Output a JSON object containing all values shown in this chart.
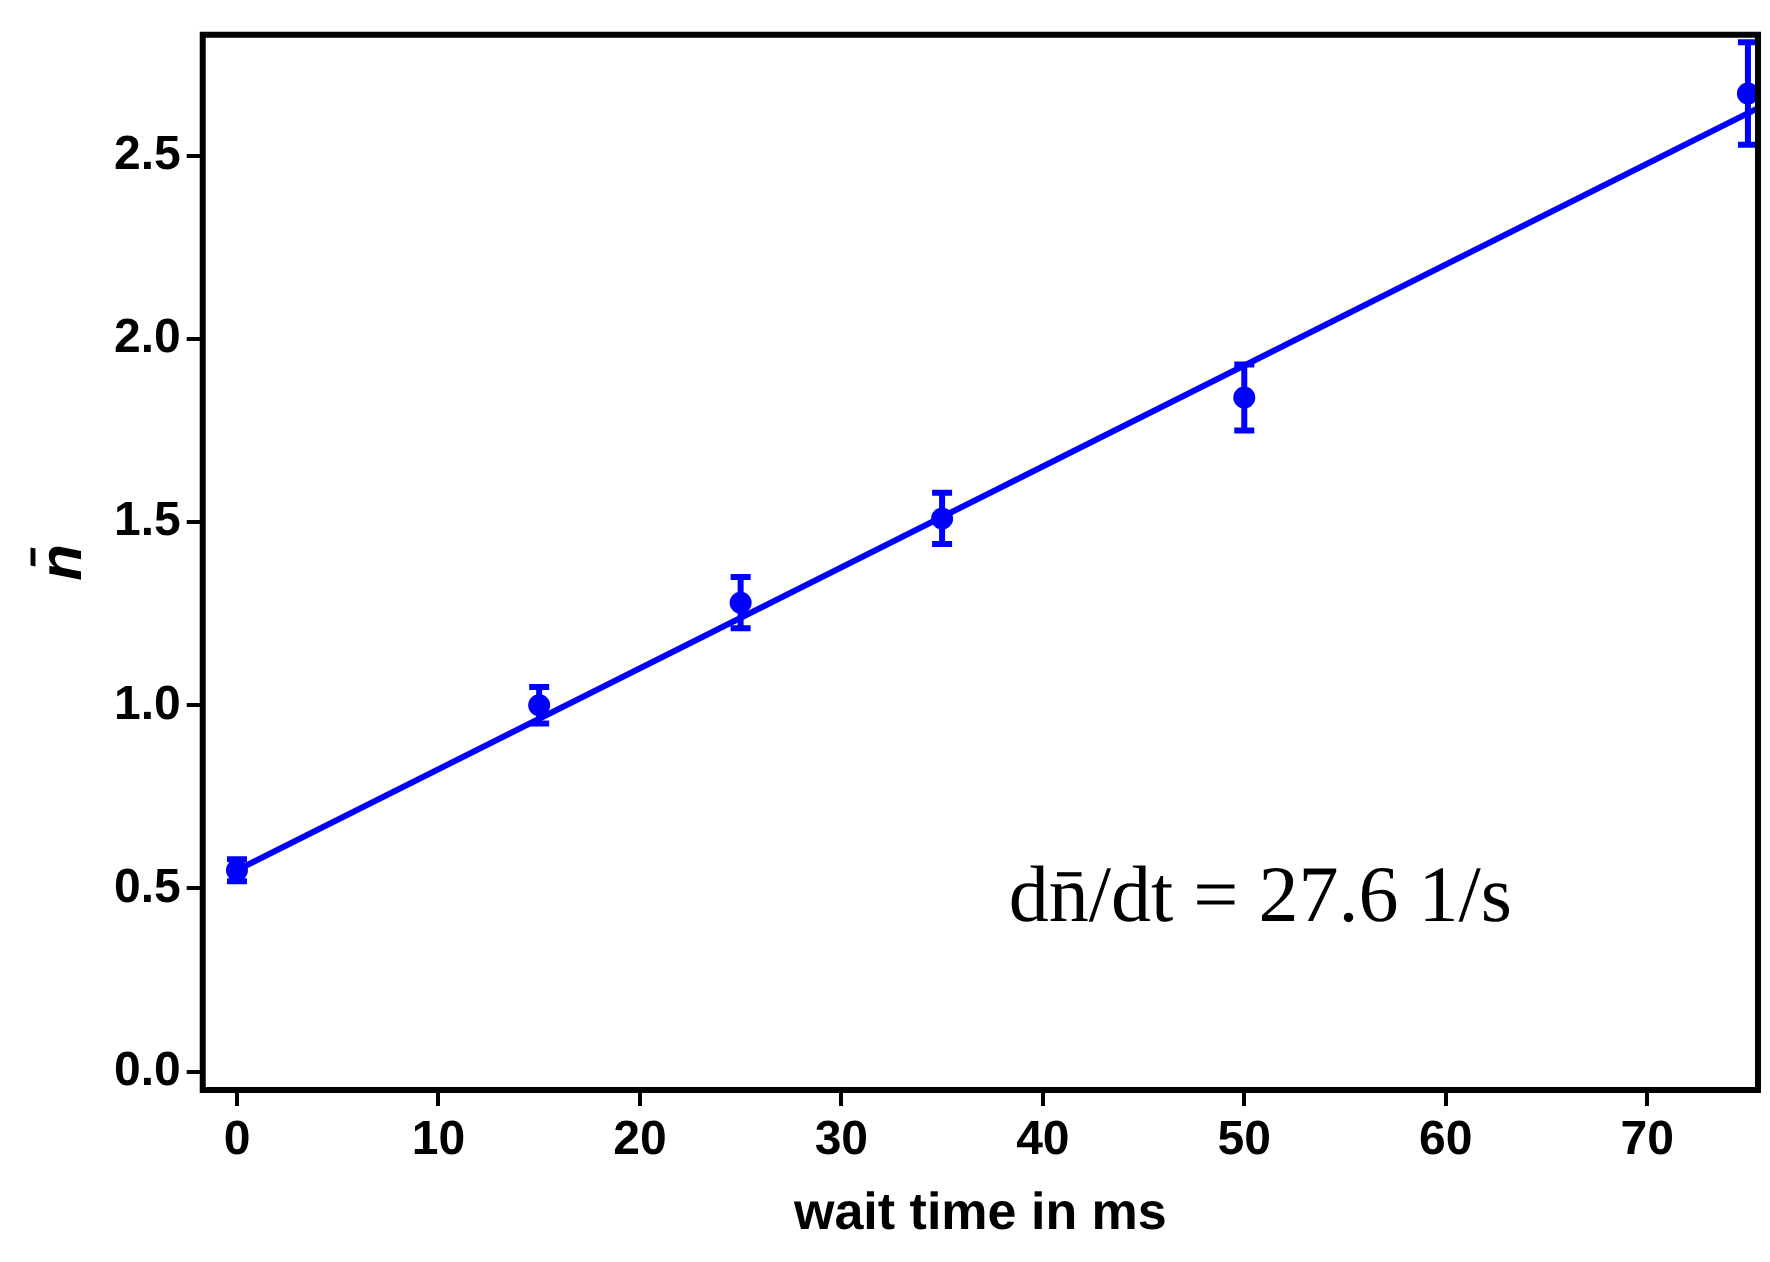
{
  "chart_data": {
    "type": "scatter",
    "xlabel": "wait time in ms",
    "ylabel": "n̄",
    "xlim": [
      -1.7,
      75.5
    ],
    "ylim": [
      -0.05,
      2.83
    ],
    "xticks": [
      0,
      10,
      20,
      30,
      40,
      50,
      60,
      70
    ],
    "yticks": [
      {
        "value": 0,
        "label": "0.0"
      },
      {
        "value": 0.5,
        "label": "0.5"
      },
      {
        "value": 1,
        "label": "1.0"
      },
      {
        "value": 1.5,
        "label": "1.5"
      },
      {
        "value": 2,
        "label": "2.0"
      },
      {
        "value": 2.5,
        "label": "2.5"
      }
    ],
    "grid": false,
    "legend": false,
    "annotations": [
      "dn̄/dt = 27.6 1/s"
    ],
    "series": [
      {
        "type": "scatter",
        "marker": "circle",
        "color": "#0000ff",
        "x": [
          0,
          15,
          25,
          35,
          50,
          75
        ],
        "values": [
          0.55,
          1.0,
          1.28,
          1.51,
          1.84,
          2.67
        ],
        "errors": [
          0.03,
          0.05,
          0.07,
          0.07,
          0.09,
          0.14
        ]
      },
      {
        "type": "line",
        "color": "#0000ff",
        "x": [
          0,
          75.5
        ],
        "values": [
          0.55,
          2.63
        ],
        "line_style": "solid"
      }
    ]
  }
}
